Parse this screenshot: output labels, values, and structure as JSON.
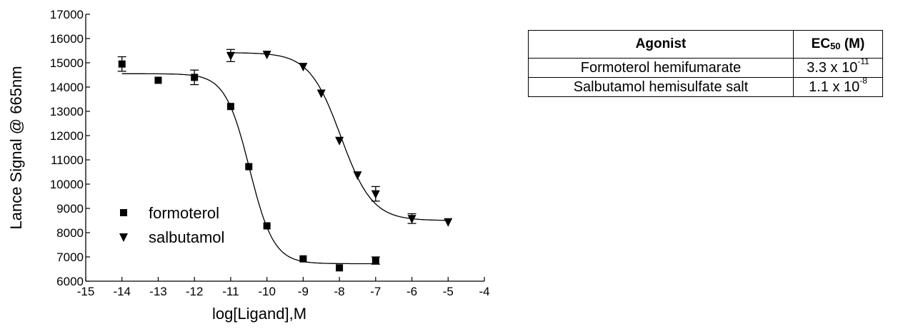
{
  "chart_data": {
    "type": "scatter",
    "xlabel": "log[Ligand],M",
    "ylabel": "Lance Signal @ 665nm",
    "xlim": [
      -15,
      -4
    ],
    "ylim": [
      6000,
      17000
    ],
    "x_ticks": [
      -15,
      -14,
      -13,
      -12,
      -11,
      -10,
      -9,
      -8,
      -7,
      -6,
      -5,
      -4
    ],
    "y_ticks": [
      6000,
      7000,
      8000,
      9000,
      10000,
      11000,
      12000,
      13000,
      14000,
      15000,
      16000,
      17000
    ],
    "legend_position": "lower-left",
    "series": [
      {
        "name": "formoterol",
        "marker": "square",
        "x": [
          -14,
          -13,
          -12,
          -11,
          -10.5,
          -10,
          -9,
          -8,
          -7
        ],
        "y": [
          14950,
          14280,
          14400,
          13200,
          10720,
          8280,
          6920,
          6550,
          6850
        ],
        "error": [
          300,
          0,
          300,
          0,
          0,
          0,
          0,
          0,
          150
        ],
        "fit": {
          "top": 14550,
          "bottom": 6720,
          "logEC50": -10.48,
          "hill": 1.3
        }
      },
      {
        "name": "salbutamol",
        "marker": "triangle-down",
        "x": [
          -11,
          -10,
          -9,
          -8.5,
          -8,
          -7.5,
          -7,
          -6,
          -5
        ],
        "y": [
          15300,
          15350,
          14850,
          13750,
          11800,
          10380,
          9600,
          8580,
          8450
        ],
        "error": [
          250,
          0,
          0,
          0,
          0,
          0,
          300,
          200,
          0
        ],
        "fit": {
          "top": 15420,
          "bottom": 8500,
          "logEC50": -7.96,
          "hill": 1.0
        }
      }
    ]
  },
  "table": {
    "headers": {
      "agonist": "Agonist",
      "ec50_prefix": "EC",
      "ec50_sub": "50",
      "ec50_suffix": " (M)"
    },
    "rows": [
      {
        "agonist": "Formoterol hemifumarate",
        "mantissa": "3.3 x 10",
        "exponent": "-11"
      },
      {
        "agonist": "Salbutamol hemisulfate salt",
        "mantissa": "1.1 x 10",
        "exponent": "-8"
      }
    ]
  }
}
